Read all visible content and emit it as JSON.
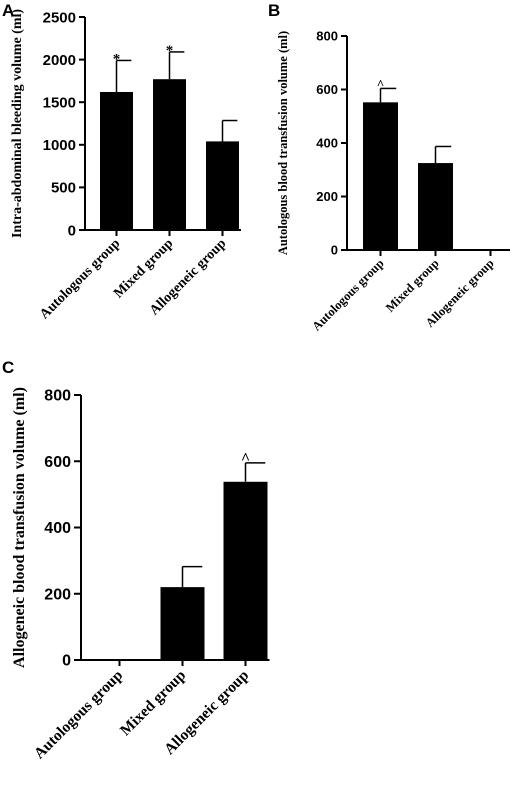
{
  "chart_data": [
    {
      "panel": "A",
      "type": "bar",
      "ylabel": "Intra-abdominal bleeding volume (ml)",
      "categories": [
        "Autologous group",
        "Mixed group",
        "Allogeneic group"
      ],
      "values": [
        1620,
        1770,
        1040
      ],
      "errors": [
        370,
        320,
        245
      ],
      "annotations": [
        "*",
        "*",
        ""
      ],
      "ylim": [
        0,
        2500
      ],
      "yticks": [
        "0",
        "500",
        "1000",
        "1500",
        "2000",
        "2500"
      ],
      "bar_color": "#000000"
    },
    {
      "panel": "B",
      "type": "bar",
      "ylabel": "Autologous blood transfusion volume (ml)",
      "categories": [
        "Autologous group",
        "Mixed group",
        "Allogeneic group"
      ],
      "values": [
        552,
        325,
        0
      ],
      "errors": [
        52,
        62,
        0
      ],
      "annotations": [
        "^",
        "",
        ""
      ],
      "ylim": [
        0,
        800
      ],
      "yticks": [
        "0",
        "200",
        "400",
        "600",
        "800"
      ],
      "bar_color": "#000000"
    },
    {
      "panel": "C",
      "type": "bar",
      "ylabel": "Allogeneic blood transfusion volume (ml)",
      "categories": [
        "Autologous group",
        "Mixed group",
        "Allogeneic group"
      ],
      "values": [
        0,
        220,
        538
      ],
      "errors": [
        0,
        62,
        57
      ],
      "annotations": [
        "",
        "",
        "^"
      ],
      "ylim": [
        0,
        800
      ],
      "yticks": [
        "0",
        "200",
        "400",
        "600",
        "800"
      ],
      "bar_color": "#000000"
    }
  ]
}
